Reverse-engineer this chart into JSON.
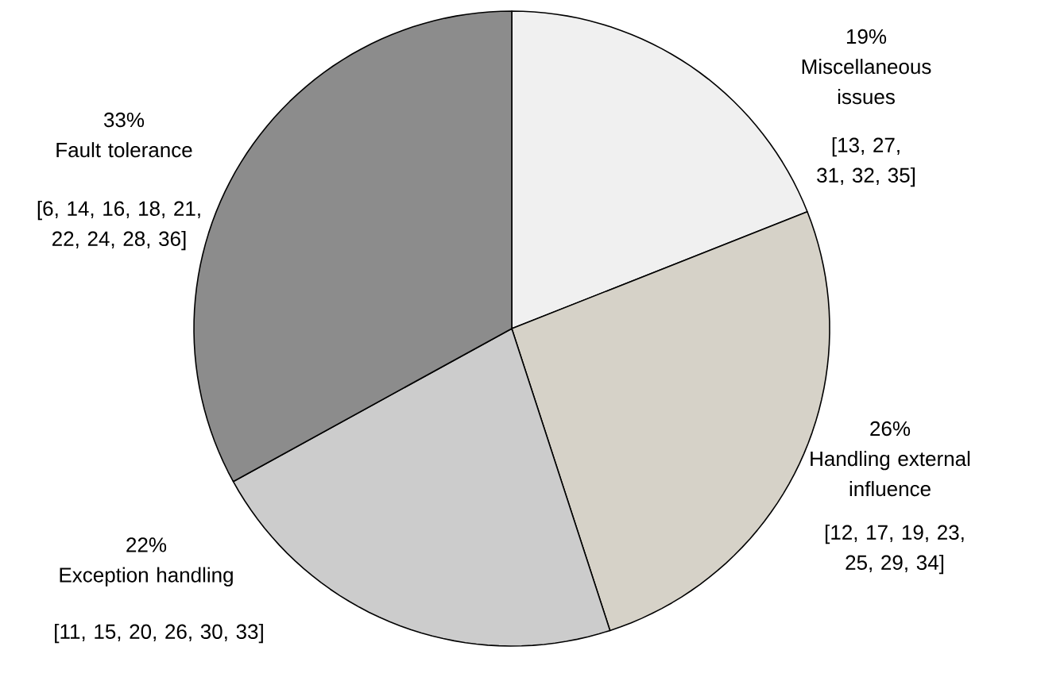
{
  "chart_data": {
    "type": "pie",
    "categories": [
      "Miscellaneous issues",
      "Handling external influence",
      "Exception handling",
      "Fault tolerance"
    ],
    "values": [
      19,
      26,
      22,
      33
    ],
    "value_labels": [
      "19%",
      "26%",
      "22%",
      "33%"
    ],
    "colors": [
      "#f0f0f0",
      "#d6d2c8",
      "#cccccc",
      "#8c8c8c"
    ],
    "annotations": [
      "[13, 27, 31, 32, 35]",
      "[12, 17, 19, 23, 25, 29, 34]",
      "[11, 15, 20, 26, 30, 33]",
      "[6, 14, 16, 18, 21, 22, 24, 28, 36]"
    ]
  }
}
